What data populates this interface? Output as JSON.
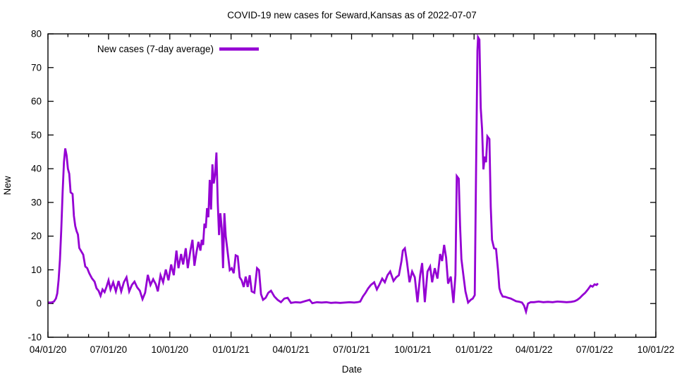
{
  "colors": {
    "background": "#ffffff",
    "axis": "#000000",
    "text": "#000000",
    "series_line": "#9400d3"
  },
  "chart_data": {
    "type": "line",
    "title": "COVID-19 new cases for Seward,Kansas as of 2022-07-07",
    "xlabel": "Date",
    "ylabel": "New",
    "grid": false,
    "legend_position": "top-left-inside",
    "ylim": [
      -10,
      80
    ],
    "yticks": [
      {
        "value": -10,
        "label": "-10"
      },
      {
        "value": 0,
        "label": "0"
      },
      {
        "value": 10,
        "label": "10"
      },
      {
        "value": 20,
        "label": "20"
      },
      {
        "value": 30,
        "label": "30"
      },
      {
        "value": 40,
        "label": "40"
      },
      {
        "value": 50,
        "label": "50"
      },
      {
        "value": 60,
        "label": "60"
      },
      {
        "value": 70,
        "label": "70"
      },
      {
        "value": 80,
        "label": "80"
      }
    ],
    "xlim": [
      "2020-04-01",
      "2022-10-01"
    ],
    "xticks": [
      {
        "date": "2020-04-01",
        "label": "04/01/20"
      },
      {
        "date": "2020-07-01",
        "label": "07/01/20"
      },
      {
        "date": "2020-10-01",
        "label": "10/01/20"
      },
      {
        "date": "2021-01-01",
        "label": "01/01/21"
      },
      {
        "date": "2021-04-01",
        "label": "04/01/21"
      },
      {
        "date": "2021-07-01",
        "label": "07/01/21"
      },
      {
        "date": "2021-10-01",
        "label": "10/01/21"
      },
      {
        "date": "2022-01-01",
        "label": "01/01/22"
      },
      {
        "date": "2022-04-01",
        "label": "04/01/22"
      },
      {
        "date": "2022-07-01",
        "label": "07/01/22"
      },
      {
        "date": "2022-10-01",
        "label": "10/01/22"
      }
    ],
    "minor_xticks_unit": "month",
    "series": [
      {
        "name": "New cases (7-day average)",
        "color": "#9400d3",
        "points": [
          [
            "2020-04-01",
            0.3
          ],
          [
            "2020-04-06",
            0.3
          ],
          [
            "2020-04-10",
            0.6
          ],
          [
            "2020-04-13",
            1.5
          ],
          [
            "2020-04-15",
            3
          ],
          [
            "2020-04-17",
            7
          ],
          [
            "2020-04-19",
            13
          ],
          [
            "2020-04-21",
            22
          ],
          [
            "2020-04-23",
            33
          ],
          [
            "2020-04-25",
            42
          ],
          [
            "2020-04-27",
            46
          ],
          [
            "2020-04-29",
            44
          ],
          [
            "2020-05-01",
            40
          ],
          [
            "2020-05-03",
            38.5
          ],
          [
            "2020-05-05",
            33
          ],
          [
            "2020-05-08",
            32.5
          ],
          [
            "2020-05-10",
            26
          ],
          [
            "2020-05-12",
            23
          ],
          [
            "2020-05-14",
            21.5
          ],
          [
            "2020-05-16",
            20.5
          ],
          [
            "2020-05-18",
            16.5
          ],
          [
            "2020-05-21",
            15.5
          ],
          [
            "2020-05-24",
            14.5
          ],
          [
            "2020-05-27",
            11
          ],
          [
            "2020-05-30",
            10.5
          ],
          [
            "2020-06-02",
            9
          ],
          [
            "2020-06-06",
            7.5
          ],
          [
            "2020-06-10",
            6.5
          ],
          [
            "2020-06-13",
            4.5
          ],
          [
            "2020-06-16",
            3.8
          ],
          [
            "2020-06-19",
            2.3
          ],
          [
            "2020-06-22",
            4.2
          ],
          [
            "2020-06-25",
            3.4
          ],
          [
            "2020-06-28",
            5
          ],
          [
            "2020-07-01",
            6.9
          ],
          [
            "2020-07-04",
            4.2
          ],
          [
            "2020-07-08",
            6.3
          ],
          [
            "2020-07-12",
            3.6
          ],
          [
            "2020-07-16",
            6.7
          ],
          [
            "2020-07-20",
            3.6
          ],
          [
            "2020-07-24",
            6.3
          ],
          [
            "2020-07-28",
            7.8
          ],
          [
            "2020-08-01",
            3.6
          ],
          [
            "2020-08-05",
            5.5
          ],
          [
            "2020-08-09",
            6.5
          ],
          [
            "2020-08-13",
            4.8
          ],
          [
            "2020-08-17",
            3.8
          ],
          [
            "2020-08-21",
            1.3
          ],
          [
            "2020-08-25",
            3.2
          ],
          [
            "2020-08-29",
            8.5
          ],
          [
            "2020-09-02",
            5.5
          ],
          [
            "2020-09-06",
            7.2
          ],
          [
            "2020-09-10",
            5.7
          ],
          [
            "2020-09-13",
            3.6
          ],
          [
            "2020-09-17",
            8.4
          ],
          [
            "2020-09-21",
            6.3
          ],
          [
            "2020-09-25",
            10.1
          ],
          [
            "2020-09-29",
            6.9
          ],
          [
            "2020-10-03",
            11.6
          ],
          [
            "2020-10-07",
            8.4
          ],
          [
            "2020-10-11",
            15.7
          ],
          [
            "2020-10-14",
            10.5
          ],
          [
            "2020-10-18",
            14.7
          ],
          [
            "2020-10-21",
            11.6
          ],
          [
            "2020-10-25",
            16.4
          ],
          [
            "2020-10-28",
            10.5
          ],
          [
            "2020-11-01",
            15.7
          ],
          [
            "2020-11-04",
            18.9
          ],
          [
            "2020-11-07",
            11.2
          ],
          [
            "2020-11-10",
            15.1
          ],
          [
            "2020-11-13",
            18.3
          ],
          [
            "2020-11-16",
            15.7
          ],
          [
            "2020-11-18",
            18.9
          ],
          [
            "2020-11-20",
            17.4
          ],
          [
            "2020-11-22",
            23.7
          ],
          [
            "2020-11-24",
            22.4
          ],
          [
            "2020-11-26",
            28.3
          ],
          [
            "2020-11-28",
            25.6
          ],
          [
            "2020-11-30",
            36.7
          ],
          [
            "2020-12-02",
            27.9
          ],
          [
            "2020-12-04",
            41.3
          ],
          [
            "2020-12-06",
            35.6
          ],
          [
            "2020-12-08",
            38.3
          ],
          [
            "2020-12-10",
            44.8
          ],
          [
            "2020-12-12",
            29.8
          ],
          [
            "2020-12-14",
            20.3
          ],
          [
            "2020-12-16",
            26.8
          ],
          [
            "2020-12-18",
            22.4
          ],
          [
            "2020-12-20",
            10.5
          ],
          [
            "2020-12-22",
            26.8
          ],
          [
            "2020-12-24",
            20
          ],
          [
            "2020-12-27",
            15.1
          ],
          [
            "2020-12-30",
            9.9
          ],
          [
            "2021-01-02",
            10.5
          ],
          [
            "2021-01-05",
            9
          ],
          [
            "2021-01-08",
            14.3
          ],
          [
            "2021-01-11",
            14
          ],
          [
            "2021-01-14",
            7.8
          ],
          [
            "2021-01-17",
            6.9
          ],
          [
            "2021-01-20",
            4.9
          ],
          [
            "2021-01-23",
            8
          ],
          [
            "2021-01-26",
            4.9
          ],
          [
            "2021-01-29",
            8.4
          ],
          [
            "2021-02-01",
            3.6
          ],
          [
            "2021-02-05",
            3.2
          ],
          [
            "2021-02-09",
            10.5
          ],
          [
            "2021-02-12",
            9.9
          ],
          [
            "2021-02-15",
            2.8
          ],
          [
            "2021-02-18",
            1.1
          ],
          [
            "2021-02-22",
            1.7
          ],
          [
            "2021-02-26",
            3.2
          ],
          [
            "2021-03-02",
            3.8
          ],
          [
            "2021-03-07",
            2.1
          ],
          [
            "2021-03-12",
            1.1
          ],
          [
            "2021-03-17",
            0.4
          ],
          [
            "2021-03-22",
            1.5
          ],
          [
            "2021-03-27",
            1.7
          ],
          [
            "2021-04-01",
            0.2
          ],
          [
            "2021-04-08",
            0.4
          ],
          [
            "2021-04-15",
            0.3
          ],
          [
            "2021-04-22",
            0.7
          ],
          [
            "2021-04-29",
            1.1
          ],
          [
            "2021-05-03",
            0.1
          ],
          [
            "2021-05-10",
            0.4
          ],
          [
            "2021-05-17",
            0.3
          ],
          [
            "2021-05-24",
            0.4
          ],
          [
            "2021-05-31",
            0.2
          ],
          [
            "2021-06-07",
            0.3
          ],
          [
            "2021-06-14",
            0.2
          ],
          [
            "2021-06-21",
            0.3
          ],
          [
            "2021-06-28",
            0.4
          ],
          [
            "2021-07-05",
            0.3
          ],
          [
            "2021-07-10",
            0.4
          ],
          [
            "2021-07-14",
            0.6
          ],
          [
            "2021-07-18",
            2.1
          ],
          [
            "2021-07-22",
            3.2
          ],
          [
            "2021-07-26",
            4.5
          ],
          [
            "2021-07-30",
            5.5
          ],
          [
            "2021-08-04",
            6.3
          ],
          [
            "2021-08-08",
            4.2
          ],
          [
            "2021-08-12",
            5.7
          ],
          [
            "2021-08-16",
            7.4
          ],
          [
            "2021-08-20",
            6.3
          ],
          [
            "2021-08-24",
            8.4
          ],
          [
            "2021-08-28",
            9.5
          ],
          [
            "2021-09-02",
            6.7
          ],
          [
            "2021-09-06",
            7.8
          ],
          [
            "2021-09-10",
            8.4
          ],
          [
            "2021-09-14",
            12.6
          ],
          [
            "2021-09-16",
            15.7
          ],
          [
            "2021-09-19",
            16.4
          ],
          [
            "2021-09-22",
            12.6
          ],
          [
            "2021-09-26",
            6.3
          ],
          [
            "2021-09-30",
            9.5
          ],
          [
            "2021-10-04",
            7.8
          ],
          [
            "2021-10-08",
            0.4
          ],
          [
            "2021-10-12",
            8.4
          ],
          [
            "2021-10-15",
            12
          ],
          [
            "2021-10-19",
            0.4
          ],
          [
            "2021-10-23",
            9.5
          ],
          [
            "2021-10-27",
            11
          ],
          [
            "2021-10-30",
            6.3
          ],
          [
            "2021-11-03",
            10.5
          ],
          [
            "2021-11-07",
            7.4
          ],
          [
            "2021-11-11",
            14.7
          ],
          [
            "2021-11-14",
            12.6
          ],
          [
            "2021-11-17",
            17.4
          ],
          [
            "2021-11-20",
            13.6
          ],
          [
            "2021-11-23",
            5.9
          ],
          [
            "2021-11-27",
            8
          ],
          [
            "2021-12-01",
            0.2
          ],
          [
            "2021-12-04",
            8.4
          ],
          [
            "2021-12-06",
            37.8
          ],
          [
            "2021-12-09",
            37
          ],
          [
            "2021-12-11",
            23.1
          ],
          [
            "2021-12-13",
            13.2
          ],
          [
            "2021-12-16",
            8.4
          ],
          [
            "2021-12-19",
            3.6
          ],
          [
            "2021-12-23",
            0.3
          ],
          [
            "2021-12-27",
            1.1
          ],
          [
            "2021-12-30",
            1.5
          ],
          [
            "2022-01-02",
            2.5
          ],
          [
            "2022-01-04",
            40
          ],
          [
            "2022-01-06",
            75
          ],
          [
            "2022-01-07",
            79
          ],
          [
            "2022-01-09",
            78.3
          ],
          [
            "2022-01-11",
            58
          ],
          [
            "2022-01-13",
            51.7
          ],
          [
            "2022-01-15",
            39.8
          ],
          [
            "2022-01-17",
            43.6
          ],
          [
            "2022-01-19",
            41.9
          ],
          [
            "2022-01-21",
            49.6
          ],
          [
            "2022-01-24",
            48.8
          ],
          [
            "2022-01-26",
            28.7
          ],
          [
            "2022-01-28",
            18.9
          ],
          [
            "2022-01-31",
            16.4
          ],
          [
            "2022-02-03",
            16.2
          ],
          [
            "2022-02-06",
            9.9
          ],
          [
            "2022-02-08",
            4.6
          ],
          [
            "2022-02-10",
            3.2
          ],
          [
            "2022-02-13",
            2.1
          ],
          [
            "2022-02-17",
            2
          ],
          [
            "2022-02-21",
            1.7
          ],
          [
            "2022-02-25",
            1.5
          ],
          [
            "2022-03-01",
            1.1
          ],
          [
            "2022-03-05",
            0.7
          ],
          [
            "2022-03-10",
            0.5
          ],
          [
            "2022-03-14",
            0.3
          ],
          [
            "2022-03-17",
            -0.6
          ],
          [
            "2022-03-20",
            -2.4
          ],
          [
            "2022-03-23",
            0
          ],
          [
            "2022-03-27",
            0.4
          ],
          [
            "2022-04-01",
            0.4
          ],
          [
            "2022-04-08",
            0.6
          ],
          [
            "2022-04-15",
            0.4
          ],
          [
            "2022-04-22",
            0.5
          ],
          [
            "2022-04-29",
            0.4
          ],
          [
            "2022-05-06",
            0.6
          ],
          [
            "2022-05-13",
            0.5
          ],
          [
            "2022-05-20",
            0.4
          ],
          [
            "2022-05-27",
            0.5
          ],
          [
            "2022-06-01",
            0.7
          ],
          [
            "2022-06-05",
            1.1
          ],
          [
            "2022-06-09",
            1.7
          ],
          [
            "2022-06-13",
            2.5
          ],
          [
            "2022-06-17",
            3.2
          ],
          [
            "2022-06-21",
            4.2
          ],
          [
            "2022-06-25",
            5.3
          ],
          [
            "2022-06-28",
            5
          ],
          [
            "2022-07-01",
            5.7
          ],
          [
            "2022-07-04",
            5.5
          ],
          [
            "2022-07-06",
            6
          ]
        ]
      }
    ]
  }
}
